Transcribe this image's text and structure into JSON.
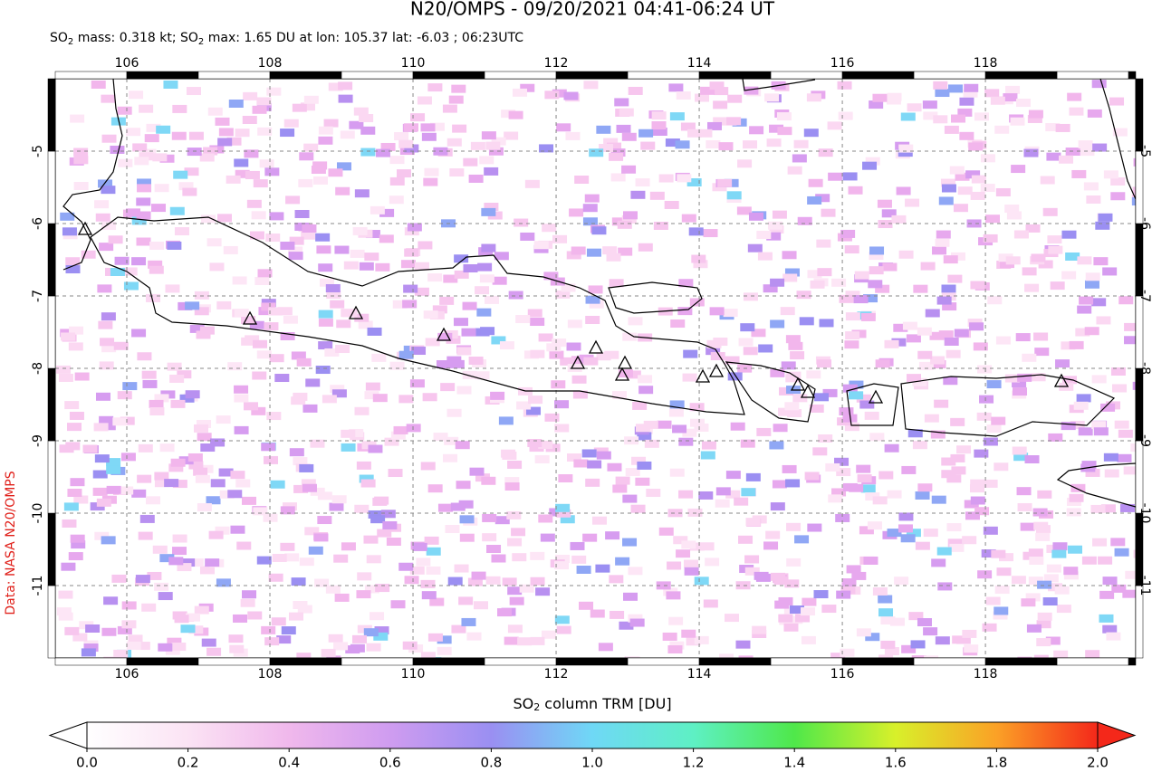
{
  "title": "N20/OMPS - 09/20/2021 04:41-06:24 UT",
  "subtitle": [
    "SO",
    "2",
    " mass: 0.318 kt; SO",
    "2",
    " max: 1.65 DU at lon: 105.37 lat: -6.03 ; 06:23UTC"
  ],
  "side_label": "Data: NASA N20/OMPS",
  "map": {
    "xlim": [
      105,
      120.1
    ],
    "ylim": [
      -12,
      -4
    ],
    "xticks": [
      106,
      108,
      110,
      112,
      114,
      116,
      118
    ],
    "yticks": [
      -5,
      -6,
      -7,
      -8,
      -9,
      -10,
      -11
    ]
  },
  "colorbar": {
    "label": [
      "SO",
      "2",
      " column TRM [DU]"
    ],
    "lim": [
      0,
      2
    ],
    "ticks": [
      {
        "value": 0,
        "label": "0.0"
      },
      0.2,
      0.4,
      0.6,
      0.8,
      {
        "value": 1,
        "label": "1.0"
      },
      1.2,
      1.4,
      1.6,
      1.8,
      {
        "value": 2,
        "label": "2.0"
      }
    ]
  }
}
